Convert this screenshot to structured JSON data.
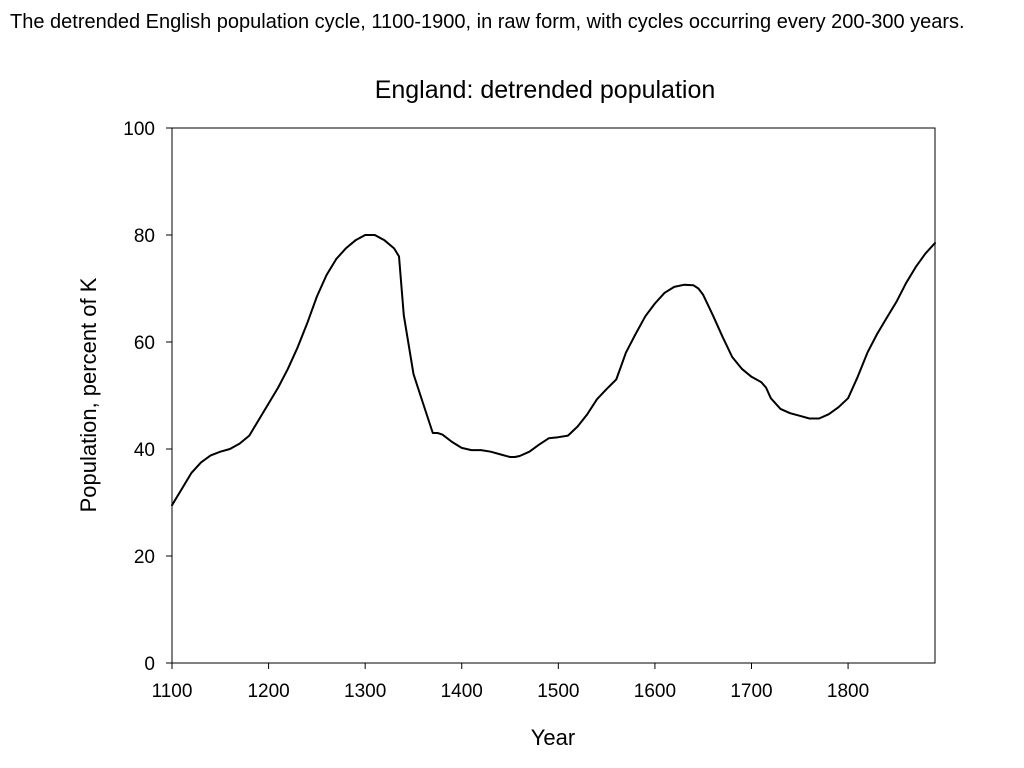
{
  "caption": "The detrended English population cycle, 1100-1900, in raw form, with cycles occurring every 200-300 years.",
  "chart_data": {
    "type": "line",
    "title": "England: detrended population",
    "xlabel": "Year",
    "ylabel": "Population, percent of K",
    "xlim": [
      1100,
      1890
    ],
    "ylim": [
      0,
      100
    ],
    "xticks": [
      1100,
      1200,
      1300,
      1400,
      1500,
      1600,
      1700,
      1800
    ],
    "yticks": [
      0,
      20,
      40,
      60,
      80,
      100
    ],
    "grid": false,
    "series": [
      {
        "color": "#000000",
        "x": [
          1100,
          1110,
          1120,
          1130,
          1140,
          1150,
          1160,
          1170,
          1180,
          1190,
          1200,
          1210,
          1220,
          1230,
          1240,
          1250,
          1260,
          1270,
          1280,
          1290,
          1300,
          1310,
          1320,
          1330,
          1335,
          1340,
          1350,
          1360,
          1370,
          1375,
          1380,
          1390,
          1400,
          1410,
          1420,
          1430,
          1440,
          1450,
          1455,
          1460,
          1470,
          1480,
          1490,
          1500,
          1510,
          1520,
          1530,
          1540,
          1550,
          1560,
          1565,
          1570,
          1580,
          1590,
          1600,
          1610,
          1620,
          1630,
          1640,
          1645,
          1650,
          1660,
          1670,
          1680,
          1690,
          1700,
          1710,
          1715,
          1720,
          1730,
          1740,
          1750,
          1760,
          1770,
          1780,
          1790,
          1800,
          1810,
          1820,
          1830,
          1840,
          1850,
          1860,
          1870,
          1880,
          1890
        ],
        "y": [
          29.5,
          32.5,
          35.5,
          37.5,
          38.8,
          39.5,
          40,
          41,
          42.5,
          45.5,
          48.5,
          51.5,
          55,
          59,
          63.5,
          68.5,
          72.5,
          75.5,
          77.5,
          79,
          80,
          80,
          79,
          77.5,
          76,
          65,
          54,
          48.5,
          43,
          43,
          42.7,
          41.3,
          40.2,
          39.8,
          39.8,
          39.5,
          39,
          38.5,
          38.5,
          38.7,
          39.5,
          40.8,
          42,
          42.2,
          42.5,
          44.2,
          46.5,
          49.3,
          51.2,
          53,
          55.5,
          58,
          61.5,
          64.8,
          67.2,
          69.2,
          70.3,
          70.7,
          70.6,
          70,
          68.8,
          65,
          61,
          57.2,
          55,
          53.5,
          52.5,
          51.5,
          49.5,
          47.5,
          46.7,
          46.2,
          45.7,
          45.7,
          46.5,
          47.8,
          49.5,
          53.5,
          58,
          61.5,
          64.5,
          67.5,
          71,
          74,
          76.5,
          78.5
        ]
      }
    ]
  }
}
